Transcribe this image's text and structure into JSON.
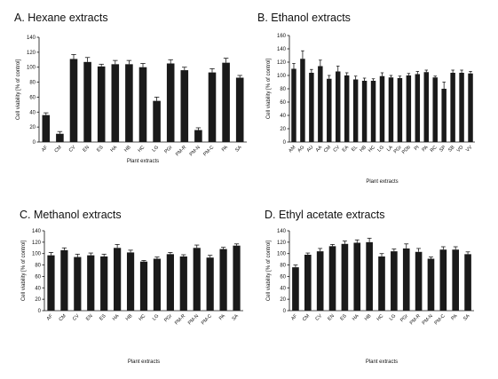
{
  "chart_data": [
    {
      "type": "bar",
      "title": "A. Hexane extracts",
      "xlabel": "Plant extracts",
      "ylabel": "Cell viability [% of control]",
      "ylim": [
        0,
        140
      ],
      "yticks": [
        0,
        20,
        40,
        60,
        80,
        100,
        120,
        140
      ],
      "categories": [
        "AF",
        "CM",
        "CV",
        "EN",
        "ES",
        "HA",
        "HB",
        "HC",
        "LG",
        "PGr",
        "PM-R",
        "PM-N",
        "PM-C",
        "PA",
        "SA"
      ],
      "values": [
        36,
        11,
        111,
        107,
        101,
        104,
        104,
        100,
        55,
        105,
        96,
        16,
        93,
        106,
        86
      ],
      "errors": [
        3,
        3,
        6,
        6,
        3,
        5,
        5,
        5,
        5,
        5,
        4,
        3,
        5,
        6,
        3
      ],
      "grid": false
    },
    {
      "type": "bar",
      "title": "B. Ethanol extracts",
      "xlabel": "Plant extracts",
      "ylabel": "Cell viability [% of control]",
      "ylim": [
        0,
        160
      ],
      "yticks": [
        0,
        20,
        40,
        60,
        80,
        100,
        120,
        140,
        160
      ],
      "categories": [
        "AM",
        "AG",
        "AU",
        "AA",
        "CM",
        "CV",
        "EA",
        "EL",
        "HB",
        "HC",
        "LG",
        "LA",
        "PGr",
        "PDb",
        "PI",
        "PA",
        "RC",
        "SP",
        "SB",
        "VO",
        "VV"
      ],
      "values": [
        110,
        125,
        104,
        114,
        95,
        106,
        100,
        94,
        92,
        92,
        99,
        97,
        96,
        100,
        102,
        105,
        97,
        80,
        104,
        104,
        103
      ],
      "errors": [
        8,
        12,
        5,
        9,
        5,
        8,
        4,
        5,
        4,
        3,
        5,
        3,
        3,
        3,
        4,
        3,
        2,
        10,
        4,
        4,
        3
      ],
      "grid": false
    },
    {
      "type": "bar",
      "title": "C. Methanol extracts",
      "xlabel": "Plant extracts",
      "ylabel": "Cell viability [% of control]",
      "ylim": [
        0,
        140
      ],
      "yticks": [
        0,
        20,
        40,
        60,
        80,
        100,
        120,
        140
      ],
      "categories": [
        "AF",
        "CM",
        "CV",
        "EN",
        "ES",
        "HA",
        "HB",
        "HC",
        "LG",
        "PGr",
        "PM-R",
        "PM-N",
        "PM-C",
        "PA",
        "SA"
      ],
      "values": [
        97,
        106,
        94,
        97,
        95,
        110,
        102,
        86,
        91,
        99,
        95,
        110,
        93,
        108,
        114
      ],
      "errors": [
        5,
        4,
        5,
        4,
        4,
        6,
        4,
        2,
        3,
        3,
        3,
        5,
        4,
        3,
        3
      ],
      "grid": false
    },
    {
      "type": "bar",
      "title": "D. Ethyl acetate extracts",
      "xlabel": "Plant extracts",
      "ylabel": "Cell viability [% of control]",
      "ylim": [
        0,
        140
      ],
      "yticks": [
        0,
        20,
        40,
        60,
        80,
        100,
        120,
        140
      ],
      "categories": [
        "AF",
        "CM",
        "CV",
        "EN",
        "ES",
        "HA",
        "HB",
        "HC",
        "LG",
        "PGr",
        "PM-R",
        "PM-N",
        "PM-C",
        "PA",
        "SA"
      ],
      "values": [
        76,
        98,
        104,
        113,
        117,
        119,
        120,
        95,
        104,
        109,
        103,
        91,
        107,
        107,
        99
      ],
      "errors": [
        4,
        3,
        5,
        3,
        5,
        5,
        7,
        5,
        4,
        8,
        6,
        3,
        5,
        5,
        4
      ],
      "grid": false
    }
  ]
}
